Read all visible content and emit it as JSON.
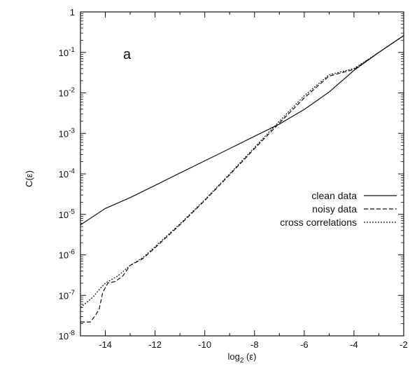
{
  "chart_data": {
    "type": "line",
    "panel_label": "a",
    "xlabel_base": "log",
    "xlabel_sub": "2",
    "xlabel_tail": " (ε)",
    "ylabel": "C(ε)",
    "xlim": [
      -15,
      -2
    ],
    "ylim": [
      1e-08,
      1
    ],
    "y_scale": "log",
    "x_ticks": [
      -14,
      -12,
      -10,
      -8,
      -6,
      -4,
      -2
    ],
    "x_tick_labels": [
      "-14",
      "-12",
      "-10",
      "-8",
      "-6",
      "-4",
      "-2"
    ],
    "y_ticks": [
      {
        "value": 1e-08,
        "base": "10",
        "exp": "-8"
      },
      {
        "value": 1e-07,
        "base": "10",
        "exp": "-7"
      },
      {
        "value": 1e-06,
        "base": "10",
        "exp": "-6"
      },
      {
        "value": 1e-05,
        "base": "10",
        "exp": "-5"
      },
      {
        "value": 0.0001,
        "base": "10",
        "exp": "-4"
      },
      {
        "value": 0.001,
        "base": "10",
        "exp": "-3"
      },
      {
        "value": 0.01,
        "base": "10",
        "exp": "-2"
      },
      {
        "value": 0.1,
        "base": "10",
        "exp": "-1"
      },
      {
        "value": 1,
        "base": "1",
        "exp": ""
      }
    ],
    "legend_position": "right",
    "series": [
      {
        "name": "clean data",
        "dash": "solid",
        "x": [
          -15,
          -14,
          -13,
          -12,
          -11,
          -10,
          -9,
          -8,
          -7,
          -6,
          -5,
          -4,
          -3,
          -2
        ],
        "y": [
          5.5e-06,
          1.4e-05,
          2.6e-05,
          5.2e-05,
          0.000105,
          0.00021,
          0.00042,
          0.00085,
          0.0017,
          0.0039,
          0.0105,
          0.036,
          0.1,
          0.26
        ]
      },
      {
        "name": "noisy data",
        "dash": "dashed",
        "x": [
          -15,
          -14.6,
          -14.4,
          -14.25,
          -14.1,
          -13.9,
          -13.6,
          -13.3,
          -13.0,
          -12.5,
          -12,
          -11,
          -10,
          -9,
          -8,
          -7,
          -6,
          -5,
          -4,
          -3,
          -2
        ],
        "y": [
          2.2e-08,
          2.2e-08,
          3.2e-08,
          4.5e-08,
          1.2e-07,
          2e-07,
          2.2e-07,
          3e-07,
          5.5e-07,
          8e-07,
          1.5e-06,
          5.5e-06,
          2.2e-05,
          9.5e-05,
          0.00042,
          0.0018,
          0.0075,
          0.026,
          0.038,
          0.1,
          0.26
        ]
      },
      {
        "name": "cross correlations",
        "dash": "dotted",
        "x": [
          -15,
          -14.5,
          -14.2,
          -14,
          -13.5,
          -13,
          -12.5,
          -12,
          -11,
          -10,
          -9,
          -8,
          -7,
          -6,
          -5,
          -4,
          -3,
          -2
        ],
        "y": [
          5e-08,
          9e-08,
          1.5e-07,
          2e-07,
          3e-07,
          5.5e-07,
          8.5e-07,
          1.6e-06,
          5.8e-06,
          2.3e-05,
          0.0001,
          0.00045,
          0.002,
          0.0085,
          0.028,
          0.04,
          0.1,
          0.26
        ]
      }
    ]
  }
}
